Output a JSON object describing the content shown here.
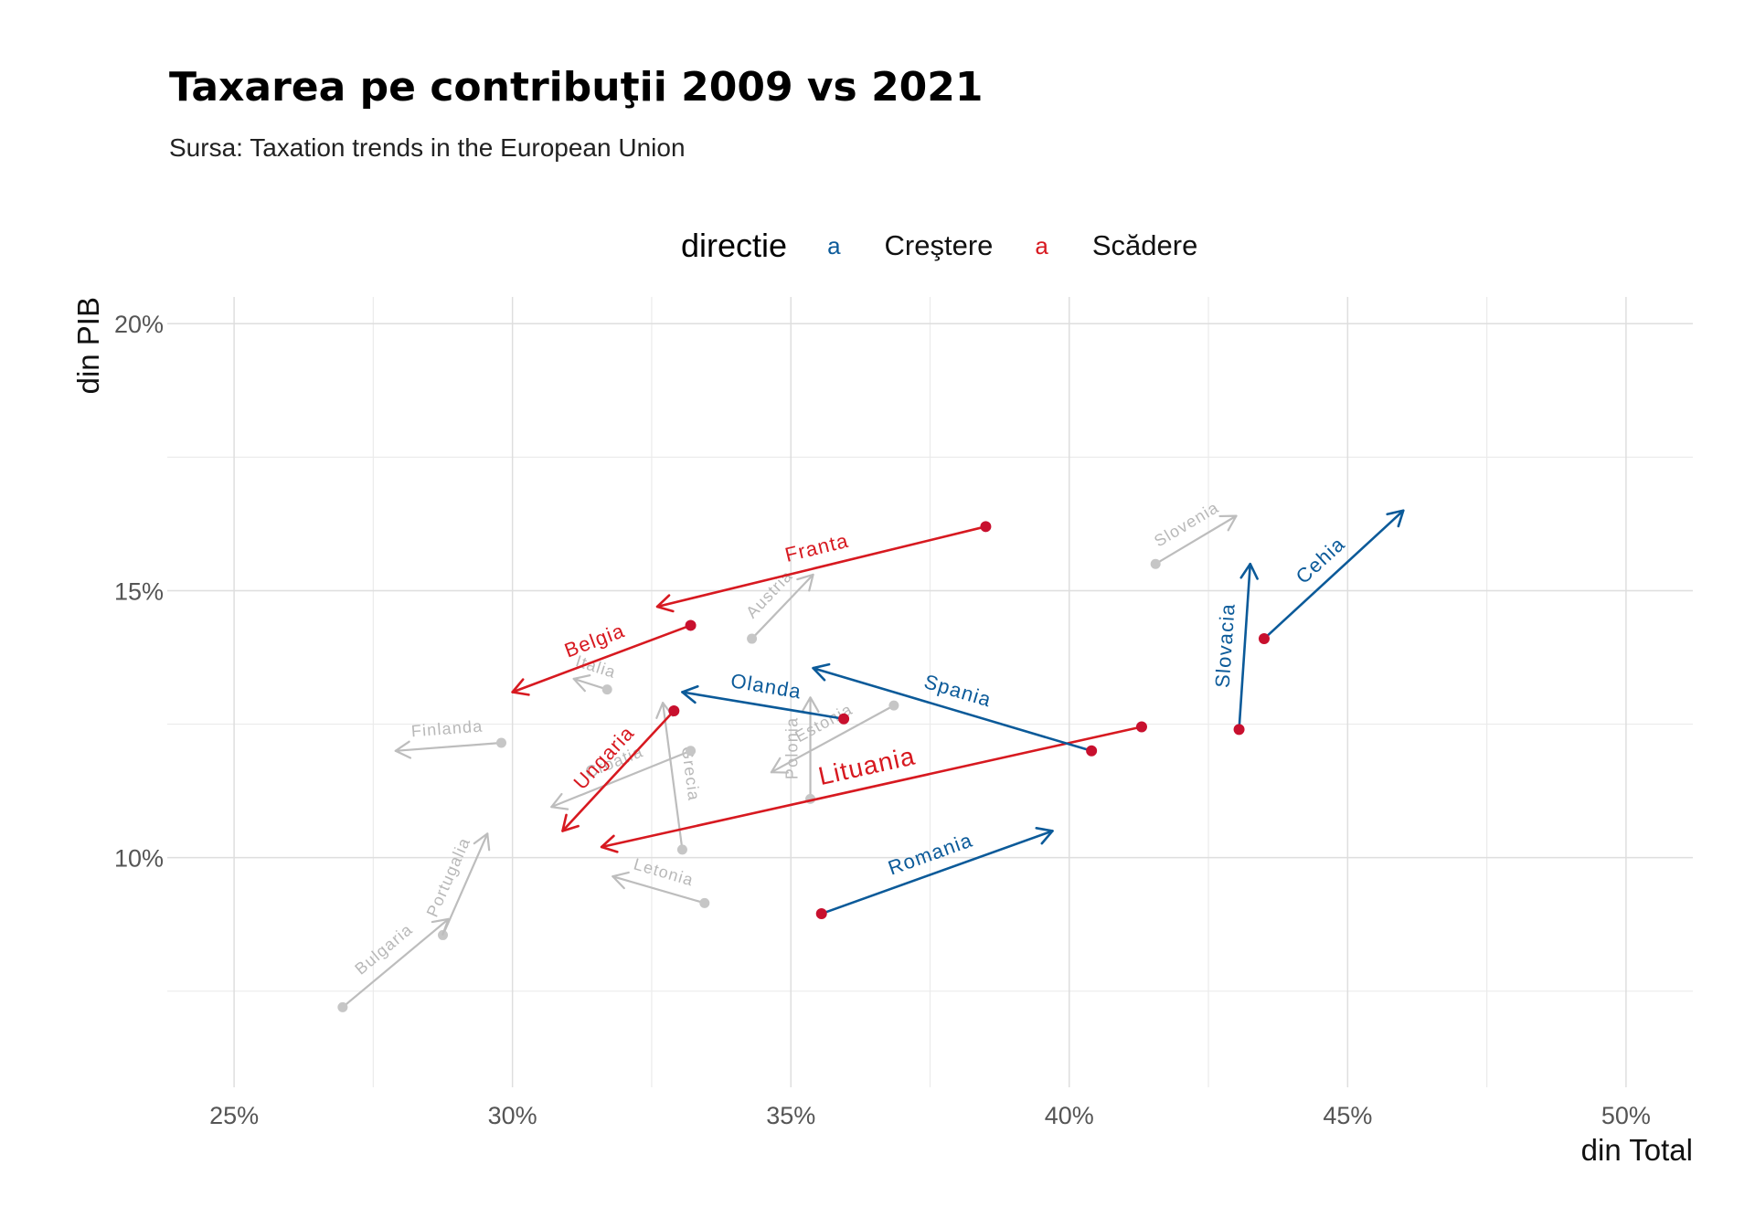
{
  "chart_data": {
    "type": "scatter",
    "title": "Taxarea pe contribuţii 2009 vs 2021",
    "subtitle": "Sursa: Taxation trends in the European Union",
    "xlabel": "din Total",
    "ylabel": "din PIB",
    "xlim": [
      23.8,
      51.2
    ],
    "ylim": [
      5.7,
      20.5
    ],
    "x_ticks": [
      25,
      30,
      35,
      40,
      45,
      50
    ],
    "x_tick_labels": [
      "25%",
      "30%",
      "35%",
      "40%",
      "45%",
      "50%"
    ],
    "y_ticks": [
      10,
      15,
      20
    ],
    "y_tick_labels": [
      "10%",
      "15%",
      "20%"
    ],
    "grid": true,
    "legend": {
      "title": "directie",
      "position": "top",
      "key_glyph": "a",
      "entries": [
        {
          "label": "Creştere",
          "color": "#0b5a99"
        },
        {
          "label": "Scădere",
          "color": "#d71920"
        }
      ]
    },
    "colors": {
      "Creştere": "#0b5a99",
      "Scădere": "#d71920",
      "other": "#bdbdbd",
      "point_highlight": "#c8102e",
      "point_other": "#c6c6c6"
    },
    "countries": [
      {
        "name": "Franta",
        "group": "Scădere",
        "x2009": 38.5,
        "y2009": 16.2,
        "x2021": 32.6,
        "y2021": 14.7
      },
      {
        "name": "Belgia",
        "group": "Scădere",
        "x2009": 33.2,
        "y2009": 14.35,
        "x2021": 30.0,
        "y2021": 13.1
      },
      {
        "name": "Lituania",
        "group": "Scădere",
        "x2009": 41.3,
        "y2009": 12.45,
        "x2021": 31.6,
        "y2021": 10.2
      },
      {
        "name": "Ungaria",
        "group": "Scădere",
        "x2009": 32.9,
        "y2009": 12.75,
        "x2021": 30.9,
        "y2021": 10.5
      },
      {
        "name": "Olanda",
        "group": "Creştere",
        "x2009": 35.95,
        "y2009": 12.6,
        "x2021": 33.05,
        "y2021": 13.1
      },
      {
        "name": "Spania",
        "group": "Creştere",
        "x2009": 40.4,
        "y2009": 12.0,
        "x2021": 35.4,
        "y2021": 13.55
      },
      {
        "name": "Romania",
        "group": "Creştere",
        "x2009": 35.55,
        "y2009": 8.95,
        "x2021": 39.7,
        "y2021": 10.5
      },
      {
        "name": "Slovacia",
        "group": "Creştere",
        "x2009": 43.05,
        "y2009": 12.4,
        "x2021": 43.25,
        "y2021": 15.5
      },
      {
        "name": "Cehia",
        "group": "Creştere",
        "x2009": 43.5,
        "y2009": 14.1,
        "x2021": 46.0,
        "y2021": 16.5
      },
      {
        "name": "Slovenia",
        "group": "other",
        "x2009": 41.55,
        "y2009": 15.5,
        "x2021": 43.0,
        "y2021": 16.4
      },
      {
        "name": "Austria",
        "group": "other",
        "x2009": 34.3,
        "y2009": 14.1,
        "x2021": 35.4,
        "y2021": 15.3
      },
      {
        "name": "Italia",
        "group": "other",
        "x2009": 31.7,
        "y2009": 13.15,
        "x2021": 31.1,
        "y2021": 13.35
      },
      {
        "name": "Finlanda",
        "group": "other",
        "x2009": 29.8,
        "y2009": 12.15,
        "x2021": 27.9,
        "y2021": 12.0
      },
      {
        "name": "Grecia",
        "group": "other",
        "x2009": 33.05,
        "y2009": 10.15,
        "x2021": 32.7,
        "y2021": 12.9
      },
      {
        "name": "Croatia",
        "group": "other",
        "x2009": 33.2,
        "y2009": 12.0,
        "x2021": 30.7,
        "y2021": 10.95
      },
      {
        "name": "Polonia",
        "group": "other",
        "x2009": 35.35,
        "y2009": 11.1,
        "x2021": 35.35,
        "y2021": 13.0
      },
      {
        "name": "Estonia",
        "group": "other",
        "x2009": 36.85,
        "y2009": 12.85,
        "x2021": 34.65,
        "y2021": 11.6
      },
      {
        "name": "Letonia",
        "group": "other",
        "x2009": 33.45,
        "y2009": 9.15,
        "x2021": 31.8,
        "y2021": 9.65
      },
      {
        "name": "Portugalia",
        "group": "other",
        "x2009": 28.75,
        "y2009": 8.55,
        "x2021": 29.55,
        "y2021": 10.45
      },
      {
        "name": "Bulgaria",
        "group": "other",
        "x2009": 26.95,
        "y2009": 7.2,
        "x2021": 28.85,
        "y2021": 8.85
      }
    ]
  }
}
